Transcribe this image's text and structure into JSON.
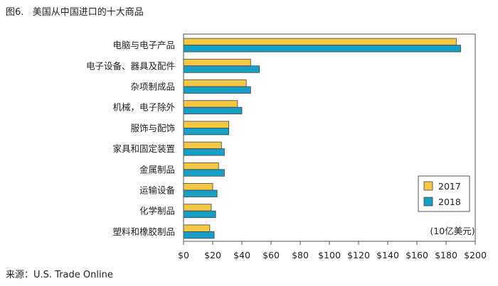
{
  "figure": {
    "title": "图6.   美国从中国进口的十大商品",
    "source": "来源：U.S. Trade Online"
  },
  "chart_data": {
    "type": "bar",
    "orientation": "horizontal",
    "categories": [
      "电脑与电子产品",
      "电子设备、器具及配件",
      "杂项制成品",
      "机械，电子除外",
      "服饰与配饰",
      "家具和固定装置",
      "金属制品",
      "运输设备",
      "化学制品",
      "塑料和橡胶制品"
    ],
    "series": [
      {
        "name": "2017",
        "color": "#f5c743",
        "values": [
          187,
          46,
          43,
          37,
          31,
          26,
          24,
          20,
          19,
          18
        ]
      },
      {
        "name": "2018",
        "color": "#159fc6",
        "values": [
          190,
          52,
          46,
          40,
          31,
          28,
          28,
          23,
          22,
          21
        ]
      }
    ],
    "xlim": [
      0,
      200
    ],
    "xticks": [
      0,
      20,
      40,
      60,
      80,
      100,
      120,
      140,
      160,
      180,
      200
    ],
    "xtick_labels": [
      "$0",
      "$20",
      "$40",
      "$60",
      "$80",
      "$100",
      "$120",
      "$140",
      "$160",
      "$180",
      "$200"
    ],
    "unit_label": "(10亿美元)",
    "legend_position": "bottom-right",
    "grid": false
  }
}
